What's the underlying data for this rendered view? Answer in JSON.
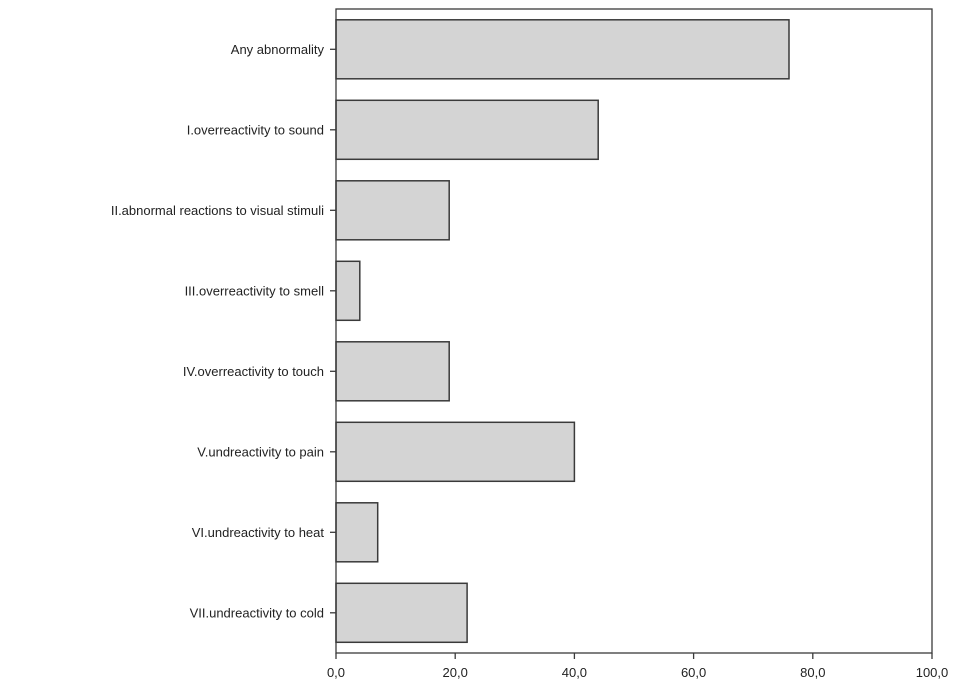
{
  "chart_data": {
    "type": "bar",
    "orientation": "horizontal",
    "categories": [
      "Any abnormality",
      "I.overreactivity to sound",
      "II.abnormal reactions to visual stimuli",
      "III.overreactivity to smell",
      "IV.overreactivity to touch",
      "V.undreactivity to pain",
      "VI.undreactivity to heat",
      "VII.undreactivity to cold"
    ],
    "values": [
      76,
      44,
      19,
      4,
      19,
      40,
      7,
      22
    ],
    "xlim": [
      0,
      100
    ],
    "x_ticks": [
      0,
      20,
      40,
      60,
      80,
      100
    ],
    "x_tick_labels": [
      "0,0",
      "20,0",
      "40,0",
      "60,0",
      "80,0",
      "100,0"
    ],
    "title": "",
    "xlabel": "",
    "ylabel": "",
    "grid": false,
    "legend": "none",
    "colors": {
      "bar_fill": "#d4d4d4",
      "bar_stroke": "#3a3a3a",
      "axis": "#3a3a3a",
      "text": "#222222"
    }
  }
}
